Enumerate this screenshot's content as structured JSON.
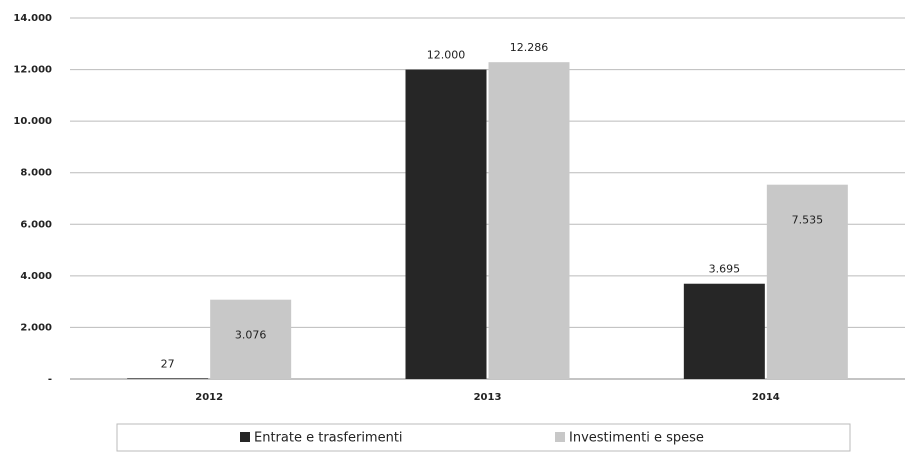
{
  "chart_data": {
    "type": "bar",
    "categories": [
      "2012",
      "2013",
      "2014"
    ],
    "series": [
      {
        "name": "Entrate e trasferimenti",
        "color": "#262626",
        "values": [
          27,
          12000,
          3695
        ],
        "value_labels": [
          "27",
          "12.000",
          "3.695"
        ]
      },
      {
        "name": "Investimenti e spese",
        "color": "#c8c8c8",
        "values": [
          3076,
          12286,
          7535
        ],
        "value_labels": [
          "3.076",
          "12.286",
          "7.535"
        ]
      }
    ],
    "ylim": [
      0,
      14000
    ],
    "yticks": [
      {
        "value": 0,
        "label": "-"
      },
      {
        "value": 2000,
        "label": "2.000"
      },
      {
        "value": 4000,
        "label": "4.000"
      },
      {
        "value": 6000,
        "label": "6.000"
      },
      {
        "value": 8000,
        "label": "8.000"
      },
      {
        "value": 10000,
        "label": "10.000"
      },
      {
        "value": 12000,
        "label": "12.000"
      },
      {
        "value": 14000,
        "label": "14.000"
      }
    ],
    "grid": true,
    "legend": "bottom"
  }
}
